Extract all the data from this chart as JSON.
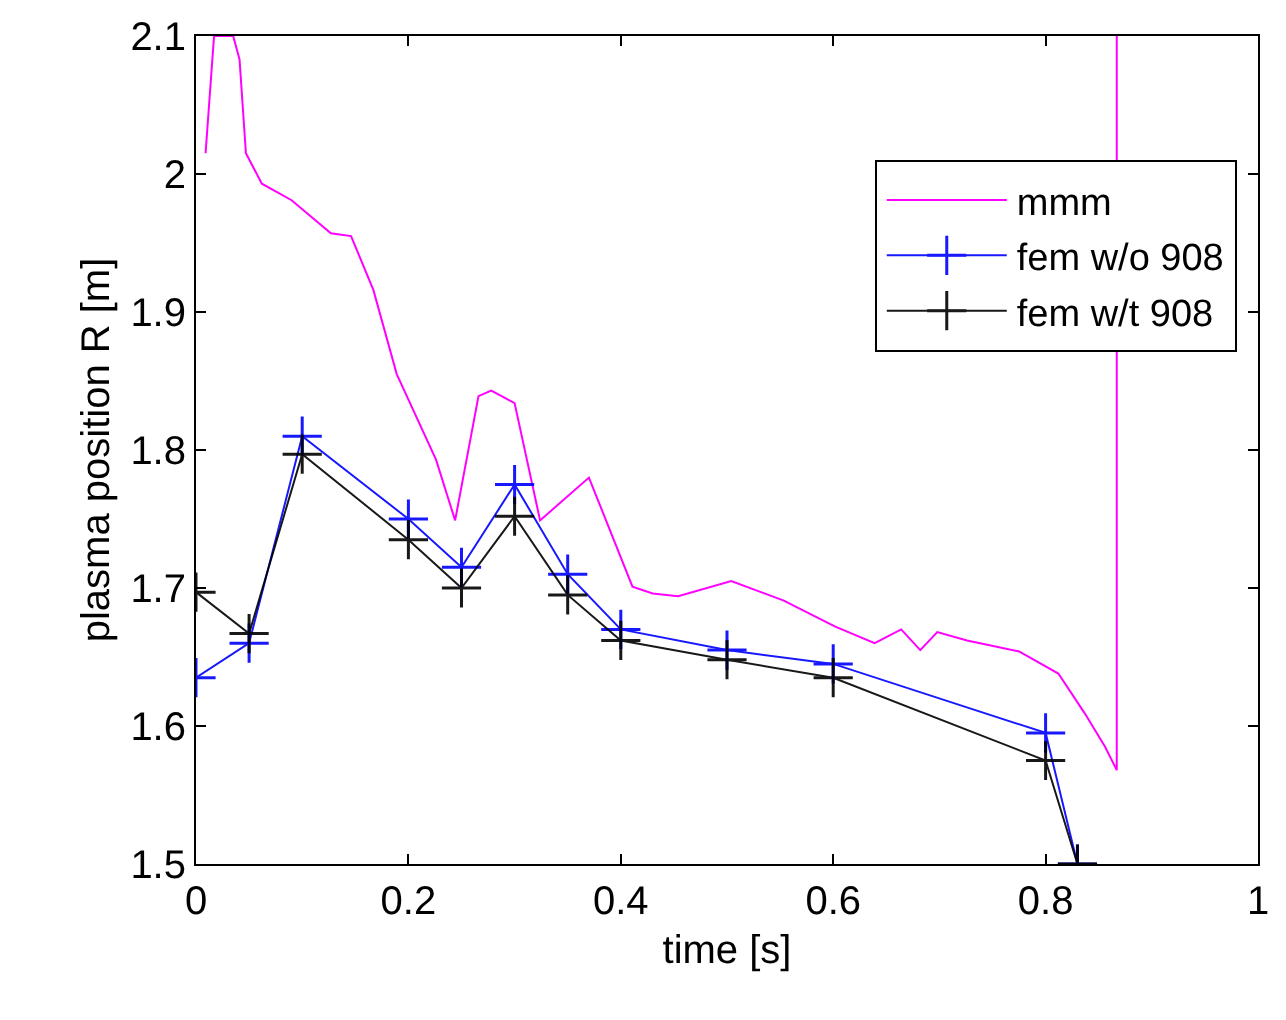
{
  "chart_data": {
    "type": "line",
    "xlabel": "time [s]",
    "ylabel": "plasma position R [m]",
    "xlim": [
      0,
      1
    ],
    "xticks": [
      0,
      0.2,
      0.4,
      0.6,
      0.8,
      1
    ],
    "ylim": [
      1.5,
      2.1
    ],
    "yticks": [
      1.5,
      1.6,
      1.7,
      1.8,
      1.9,
      2,
      2.1
    ],
    "legend": "top right",
    "series": [
      {
        "name": "mmm",
        "color": "#ff00ff",
        "marker": "none",
        "x": [
          0.009,
          0.017,
          0.035,
          0.041,
          0.047,
          0.062,
          0.09,
          0.127,
          0.146,
          0.167,
          0.189,
          0.226,
          0.244,
          0.266,
          0.278,
          0.3,
          0.324,
          0.37,
          0.411,
          0.43,
          0.454,
          0.504,
          0.553,
          0.602,
          0.639,
          0.664,
          0.682,
          0.698,
          0.726,
          0.775,
          0.812,
          0.837,
          0.856,
          0.867,
          0.867
        ],
        "values": [
          2.015,
          2.1,
          2.1,
          2.083,
          2.015,
          1.993,
          1.981,
          1.957,
          1.955,
          1.916,
          1.855,
          1.793,
          1.749,
          1.839,
          1.843,
          1.834,
          1.749,
          1.78,
          1.701,
          1.696,
          1.694,
          1.705,
          1.691,
          1.672,
          1.66,
          1.67,
          1.655,
          1.668,
          1.662,
          1.654,
          1.638,
          1.609,
          1.585,
          1.568,
          2.1
        ]
      },
      {
        "name": "fem w/o 908",
        "color": "#0000ff",
        "marker": "cross",
        "x": [
          0,
          0.05,
          0.1,
          0.2,
          0.25,
          0.3,
          0.35,
          0.4,
          0.5,
          0.6,
          0.8,
          0.83
        ],
        "values": [
          1.635,
          1.66,
          1.81,
          1.75,
          1.715,
          1.775,
          1.71,
          1.67,
          1.655,
          1.645,
          1.595,
          1.5
        ]
      },
      {
        "name": "fem w/t 908",
        "color": "#000000",
        "marker": "cross",
        "x": [
          0,
          0.05,
          0.1,
          0.2,
          0.25,
          0.3,
          0.35,
          0.4,
          0.5,
          0.6,
          0.8,
          0.83
        ],
        "values": [
          1.697,
          1.667,
          1.797,
          1.735,
          1.7,
          1.752,
          1.695,
          1.662,
          1.648,
          1.635,
          1.575,
          1.5
        ]
      }
    ]
  }
}
